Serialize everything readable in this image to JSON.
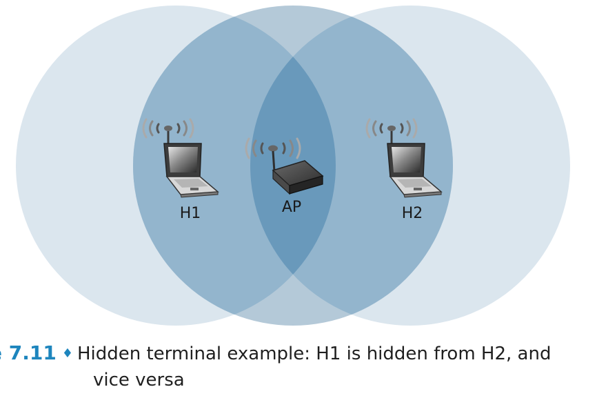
{
  "colors": {
    "outer_circle": "#dbe6ee",
    "mid_circle": "#93b5cd",
    "overlap": "#6999bb",
    "caption_accent": "#1d85bd"
  },
  "nodes": {
    "h1": {
      "label": "H1"
    },
    "ap": {
      "label": "AP"
    },
    "h2": {
      "label": "H2"
    }
  },
  "caption": {
    "figure_label": "e 7.11",
    "separator": "♦",
    "text_line1": "Hidden terminal example: H1 is hidden from H2, and",
    "text_line2": "vice versa"
  }
}
